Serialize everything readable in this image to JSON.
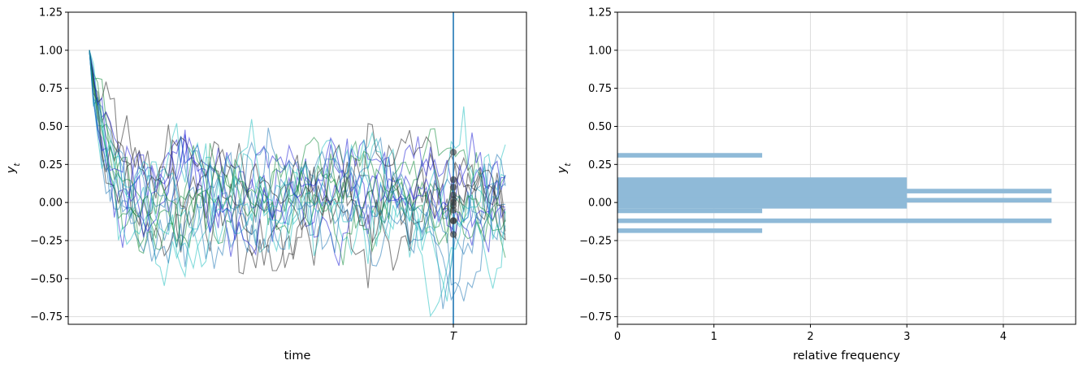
{
  "chart_data": [
    {
      "type": "line",
      "xlabel": "time",
      "ylabel": "y_t",
      "ylim": [
        -0.8,
        1.25
      ],
      "yticks": [
        1.25,
        1.0,
        0.75,
        0.5,
        0.25,
        0.0,
        -0.25,
        -0.5,
        -0.75
      ],
      "ytick_labels": [
        "1.25",
        "1.00",
        "0.75",
        "0.50",
        "0.25",
        "0.00",
        "−0.25",
        "−0.50",
        "−0.75"
      ],
      "xtick_labels": [
        "T"
      ],
      "grid": "horizontal",
      "vertical_marker": {
        "label": "T",
        "color": "#1f77b4"
      },
      "series_colors": [
        "#222222",
        "#1f1fd6",
        "#138c3c",
        "#20bfbf",
        "#1f77b4"
      ],
      "n_paths": 20,
      "path_start": 1.0,
      "path_stationary_mean": 0.0,
      "path_noise_sd": 0.12,
      "markers_at_T": [
        0.33,
        0.15,
        0.1,
        0.05,
        0.02,
        0.0,
        -0.02,
        -0.05,
        -0.12,
        -0.12,
        -0.21
      ]
    },
    {
      "type": "bar",
      "orientation": "horizontal",
      "xlabel": "relative frequency",
      "ylabel": "y_t",
      "ylim": [
        -0.8,
        1.25
      ],
      "xlim": [
        0,
        4.75
      ],
      "xticks": [
        0,
        1,
        2,
        3,
        4
      ],
      "xtick_labels": [
        "0",
        "1",
        "2",
        "3",
        "4"
      ],
      "yticks": [
        1.25,
        1.0,
        0.75,
        0.5,
        0.25,
        0.0,
        -0.25,
        -0.5,
        -0.75
      ],
      "ytick_labels": [
        "1.25",
        "1.00",
        "0.75",
        "0.50",
        "0.25",
        "0.00",
        "−0.25",
        "−0.50",
        "−0.75"
      ],
      "grid": "both",
      "bar_color": "#8fbad8",
      "bars": [
        {
          "y_low": 0.295,
          "y_high": 0.325,
          "value": 1.5
        },
        {
          "y_low": 0.165,
          "y_high": -0.04,
          "value": 3.0
        },
        {
          "y_low": -0.04,
          "y_high": -0.07,
          "value": 1.5
        },
        {
          "y_low": 0.09,
          "y_high": 0.06,
          "value": 4.5
        },
        {
          "y_low": 0.03,
          "y_high": 0.0,
          "value": 4.5
        },
        {
          "y_low": -0.105,
          "y_high": -0.135,
          "value": 4.5
        },
        {
          "y_low": -0.17,
          "y_high": -0.2,
          "value": 1.5
        }
      ]
    }
  ]
}
